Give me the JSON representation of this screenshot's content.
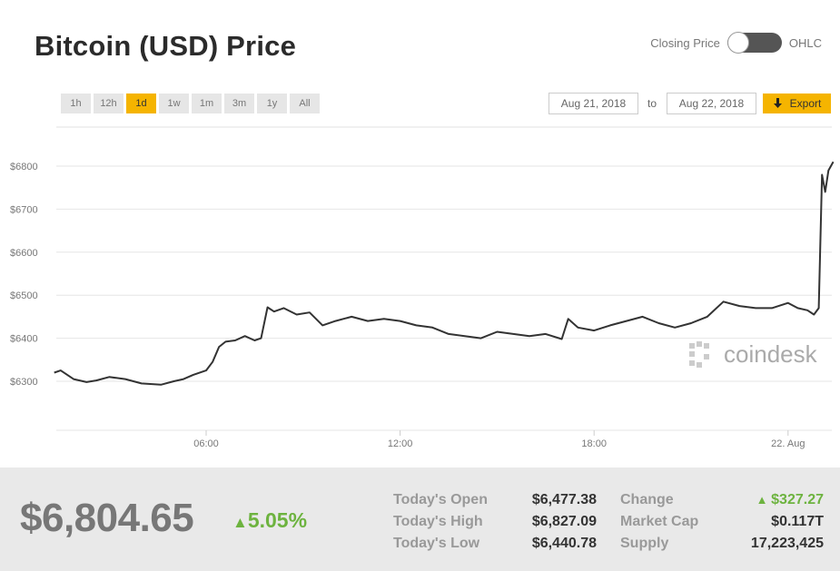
{
  "header": {
    "title": "Bitcoin (USD) Price",
    "toggle_left_label": "Closing Price",
    "toggle_right_label": "OHLC"
  },
  "range_buttons": [
    "1h",
    "12h",
    "1d",
    "1w",
    "1m",
    "3m",
    "1y",
    "All"
  ],
  "active_range": "1d",
  "date_range": {
    "from": "Aug 21, 2018",
    "to_label": "to",
    "to": "Aug 22, 2018"
  },
  "export_label": "Export",
  "watermark": "coindesk",
  "colors": {
    "accent": "#f5b400",
    "positive": "#6db33f",
    "line": "#333333"
  },
  "chart_data": {
    "type": "line",
    "title": "",
    "xlabel": "",
    "ylabel": "",
    "y_ticks": [
      "$6300",
      "$6400",
      "$6500",
      "$6600",
      "$6700",
      "$6800"
    ],
    "y_tick_values": [
      6300,
      6400,
      6500,
      6600,
      6700,
      6800
    ],
    "x_ticks": [
      "06:00",
      "12:00",
      "18:00",
      "22. Aug"
    ],
    "x_tick_hours": [
      6,
      12,
      18,
      24
    ],
    "ylim": [
      6200,
      6900
    ],
    "xlim_hours": [
      1.3,
      25.4
    ],
    "grid": true,
    "series": [
      {
        "x_hours": [
          1.3,
          1.5,
          1.9,
          2.3,
          2.6,
          3.0,
          3.5,
          4.0,
          4.6,
          5.0,
          5.3,
          5.6,
          6.0,
          6.2,
          6.4,
          6.6,
          6.9,
          7.2,
          7.5,
          7.7,
          7.9,
          8.1,
          8.4,
          8.8,
          9.2,
          9.6,
          10.0,
          10.5,
          11.0,
          11.5,
          12.0,
          12.5,
          13.0,
          13.5,
          14.0,
          14.5,
          15.0,
          15.5,
          16.0,
          16.5,
          17.0,
          17.2,
          17.5,
          18.0,
          18.5,
          19.0,
          19.5,
          20.0,
          20.5,
          21.0,
          21.5,
          22.0,
          22.5,
          23.0,
          23.5,
          24.0,
          24.3,
          24.6,
          24.8,
          24.95,
          25.05,
          25.15,
          25.25,
          25.4
        ],
        "values": [
          6320,
          6325,
          6305,
          6298,
          6302,
          6310,
          6305,
          6295,
          6292,
          6300,
          6305,
          6315,
          6325,
          6345,
          6380,
          6392,
          6395,
          6405,
          6395,
          6400,
          6472,
          6462,
          6470,
          6455,
          6460,
          6430,
          6440,
          6450,
          6440,
          6445,
          6440,
          6430,
          6425,
          6410,
          6405,
          6400,
          6415,
          6410,
          6405,
          6410,
          6398,
          6445,
          6425,
          6418,
          6430,
          6440,
          6450,
          6435,
          6425,
          6435,
          6450,
          6485,
          6475,
          6470,
          6470,
          6482,
          6470,
          6465,
          6455,
          6470,
          6780,
          6740,
          6790,
          6810
        ]
      }
    ]
  },
  "stats": {
    "price": "$6,804.65",
    "change_pct": "5.05%",
    "todays_open_label": "Today's Open",
    "todays_open": "$6,477.38",
    "todays_high_label": "Today's High",
    "todays_high": "$6,827.09",
    "todays_low_label": "Today's Low",
    "todays_low": "$6,440.78",
    "change_label": "Change",
    "change": "$327.27",
    "market_cap_label": "Market Cap",
    "market_cap": "$0.117T",
    "supply_label": "Supply",
    "supply": "17,223,425"
  }
}
